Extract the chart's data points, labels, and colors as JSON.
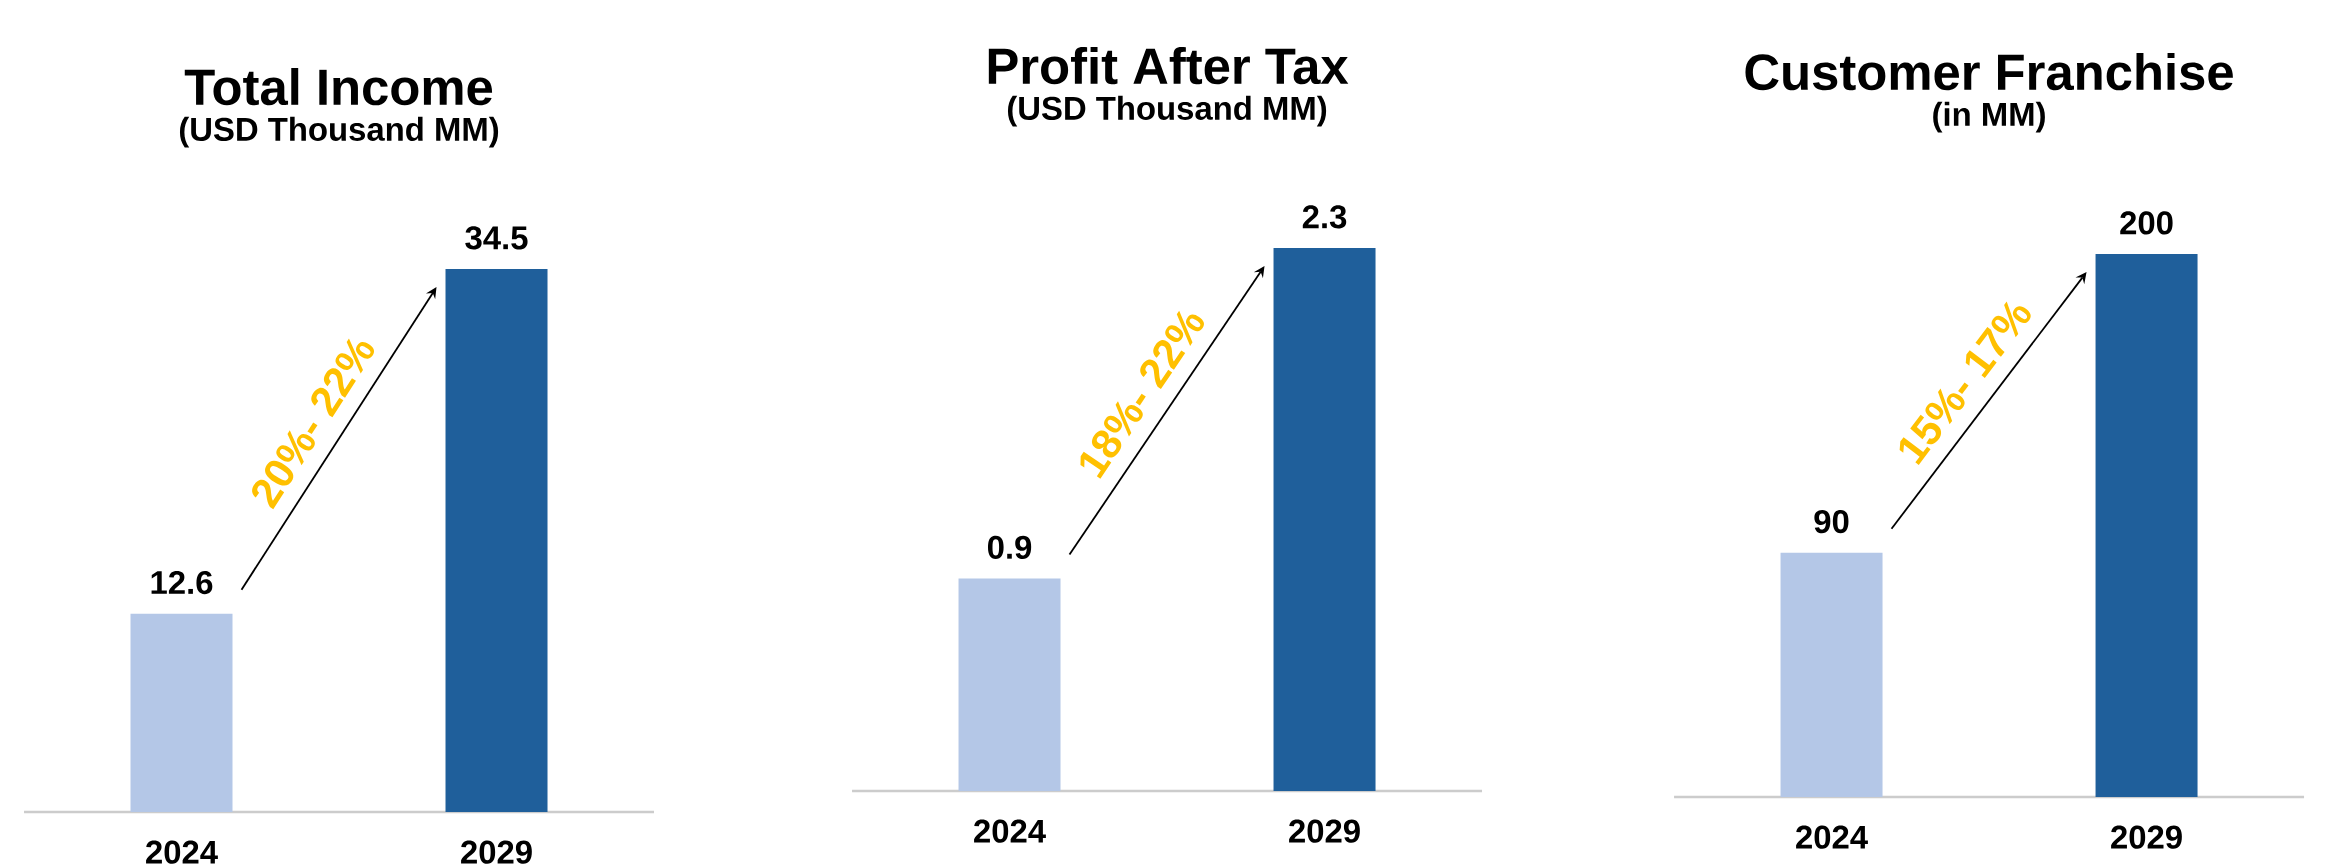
{
  "chart_data": [
    {
      "type": "bar",
      "title": "Total  Income",
      "subtitle": "(USD Thousand MM)",
      "categories": [
        "2024",
        "2029"
      ],
      "values": [
        12.6,
        34.5
      ],
      "colors": [
        "#b4c7e7",
        "#1f5f9b"
      ],
      "data_labels": true,
      "annotations": [
        "20%- 22%"
      ]
    },
    {
      "type": "bar",
      "title": "Profit After Tax",
      "subtitle": "(USD Thousand MM)",
      "categories": [
        "2024",
        "2029"
      ],
      "values": [
        0.9,
        2.3
      ],
      "colors": [
        "#b4c7e7",
        "#1f5f9b"
      ],
      "data_labels": true,
      "annotations": [
        "18%- 22%"
      ]
    },
    {
      "type": "bar",
      "title": "Customer Franchise",
      "subtitle": "(in MM)",
      "categories": [
        "2024",
        "2029"
      ],
      "values": [
        90,
        200
      ],
      "colors": [
        "#b4c7e7",
        "#1f5f9b"
      ],
      "data_labels": true,
      "annotations": [
        "15%- 17%"
      ]
    }
  ]
}
